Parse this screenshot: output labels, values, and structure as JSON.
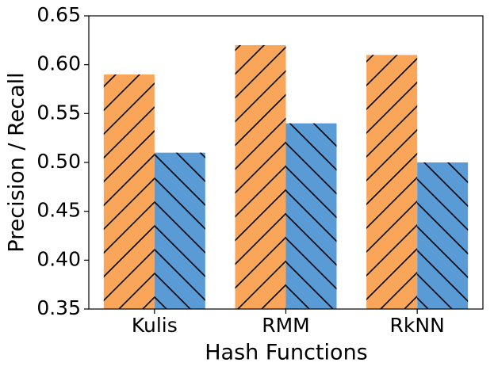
{
  "chart_data": {
    "type": "bar",
    "xlabel": "Hash Functions",
    "ylabel": "Precision / Recall",
    "categories": [
      "Kulis",
      "RMM",
      "RkNN"
    ],
    "series": [
      {
        "color": "#f9a65a",
        "hatch": "/",
        "values": [
          0.59,
          0.62,
          0.61
        ]
      },
      {
        "color": "#5b9bd5",
        "hatch": "\\",
        "values": [
          0.51,
          0.54,
          0.5
        ]
      }
    ],
    "ylim": [
      0.35,
      0.65
    ],
    "yticks": [
      0.35,
      {
        "value": 0.4,
        "label": "0.40"
      },
      0.45,
      {
        "value": 0.5,
        "label": "0.50"
      },
      0.55,
      {
        "value": 0.6,
        "label": "0.60"
      },
      0.65
    ],
    "grid": false
  }
}
